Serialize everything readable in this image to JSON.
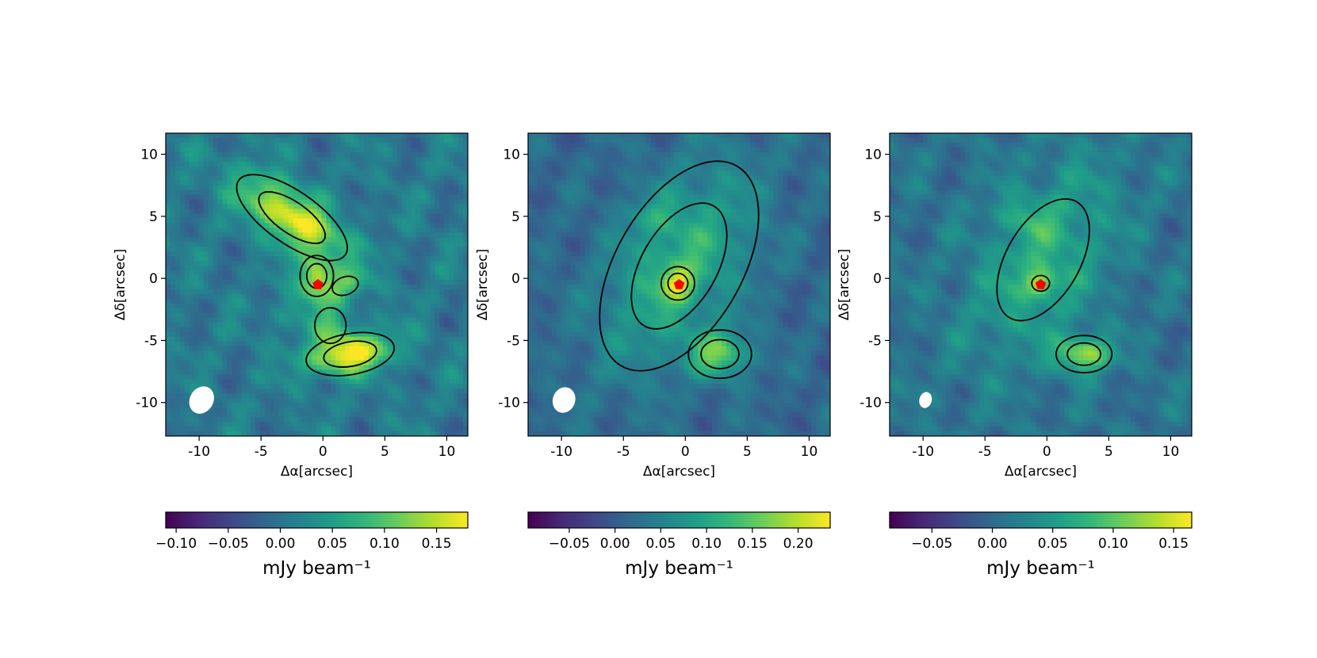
{
  "figure": {
    "panel_count": 3,
    "colormap": "viridis",
    "colormap_stops": [
      "#440154",
      "#482878",
      "#3e4989",
      "#31688e",
      "#26828e",
      "#1f9e89",
      "#35b779",
      "#6ece58",
      "#b5de2b",
      "#fde725"
    ],
    "contour_color": "#000000",
    "star_marker_color": "#ff0000",
    "beam_color": "#ffffff"
  },
  "chart_data": [
    {
      "type": "heatmap",
      "title": "",
      "xlabel": "Δα[arcsec]",
      "ylabel": "Δδ[arcsec]",
      "xlim": [
        -12.7,
        11.7
      ],
      "ylim": [
        -12.7,
        11.7
      ],
      "xticks": [
        -10,
        -5,
        0,
        5,
        10
      ],
      "yticks": [
        -10,
        -5,
        0,
        5,
        10
      ],
      "xtick_labels": [
        "-10",
        "-5",
        "0",
        "5",
        "10"
      ],
      "ytick_labels": [
        "-10",
        "-5",
        "0",
        "5",
        "10"
      ],
      "colorbar": {
        "label": "mJy beam⁻¹",
        "range": [
          -0.11,
          0.18
        ],
        "ticks": [
          -0.1,
          -0.05,
          0.0,
          0.05,
          0.1,
          0.15
        ],
        "tick_labels": [
          "−0.10",
          "−0.05",
          "0.00",
          "0.05",
          "0.10",
          "0.15"
        ]
      },
      "beam": {
        "x": -9.8,
        "y": -9.8,
        "major_arcsec": 2.3,
        "minor_arcsec": 1.9,
        "pa_deg": 30
      },
      "star_marker": {
        "x": -0.4,
        "y": -0.5
      },
      "sources": [
        {
          "x": -2.5,
          "y": 4.9,
          "peak": 0.17,
          "sx": 3.5,
          "sy": 1.4,
          "pa": -35
        },
        {
          "x": -0.5,
          "y": 0.2,
          "peak": 0.13,
          "sx": 0.9,
          "sy": 1.1,
          "pa": 0
        },
        {
          "x": 1.8,
          "y": -0.6,
          "peak": 0.08,
          "sx": 1.2,
          "sy": 0.8,
          "pa": 20
        },
        {
          "x": 2.2,
          "y": -6.1,
          "peak": 0.17,
          "sx": 2.4,
          "sy": 1.1,
          "pa": 10
        },
        {
          "x": 0.6,
          "y": -3.8,
          "peak": 0.06,
          "sx": 1.4,
          "sy": 1.6,
          "pa": 0
        },
        {
          "x": -2.0,
          "y": -2.0,
          "peak": 0.04,
          "sx": 1.0,
          "sy": 2.0,
          "pa": -40
        }
      ]
    },
    {
      "type": "heatmap",
      "title": "",
      "xlabel": "Δα[arcsec]",
      "ylabel": "Δδ[arcsec]",
      "xlim": [
        -12.7,
        11.7
      ],
      "ylim": [
        -12.7,
        11.7
      ],
      "xticks": [
        -10,
        -5,
        0,
        5,
        10
      ],
      "yticks": [
        -10,
        -5,
        0,
        5,
        10
      ],
      "xtick_labels": [
        "-10",
        "-5",
        "0",
        "5",
        "10"
      ],
      "ytick_labels": [
        "-10",
        "-5",
        "0",
        "5",
        "10"
      ],
      "colorbar": {
        "label": "mJy beam⁻¹",
        "range": [
          -0.095,
          0.235
        ],
        "ticks": [
          -0.05,
          0.0,
          0.05,
          0.1,
          0.15,
          0.2
        ],
        "tick_labels": [
          "−0.05",
          "0.00",
          "0.05",
          "0.10",
          "0.15",
          "0.20"
        ]
      },
      "beam": {
        "x": -9.8,
        "y": -9.8,
        "major_arcsec": 2.1,
        "minor_arcsec": 1.8,
        "pa_deg": 20
      },
      "star_marker": {
        "x": -0.5,
        "y": -0.5
      },
      "sources": [
        {
          "x": -0.5,
          "y": 1.0,
          "peak": 0.1,
          "sx": 3.4,
          "sy": 6.2,
          "pa": -30
        },
        {
          "x": -0.6,
          "y": -0.4,
          "peak": 0.12,
          "sx": 0.9,
          "sy": 0.9,
          "pa": 0
        },
        {
          "x": 2.8,
          "y": -6.1,
          "peak": 0.13,
          "sx": 1.7,
          "sy": 1.3,
          "pa": 0
        },
        {
          "x": -2.8,
          "y": 5.0,
          "peak": 0.04,
          "sx": 1.4,
          "sy": 1.0,
          "pa": 0
        }
      ]
    },
    {
      "type": "heatmap",
      "title": "",
      "xlabel": "Δα[arcsec]",
      "ylabel": "Δδ[arcsec]",
      "xlim": [
        -12.7,
        11.7
      ],
      "ylim": [
        -12.7,
        11.7
      ],
      "xticks": [
        -10,
        -5,
        0,
        5,
        10
      ],
      "yticks": [
        -10,
        -5,
        0,
        5,
        10
      ],
      "xtick_labels": [
        "-10",
        "-5",
        "0",
        "5",
        "10"
      ],
      "ytick_labels": [
        "-10",
        "-5",
        "0",
        "5",
        "10"
      ],
      "colorbar": {
        "label": "mJy beam⁻¹",
        "range": [
          -0.085,
          0.165
        ],
        "ticks": [
          -0.05,
          0.0,
          0.05,
          0.1,
          0.15
        ],
        "tick_labels": [
          "−0.05",
          "0.00",
          "0.05",
          "0.10",
          "0.15"
        ]
      },
      "beam": {
        "x": -9.8,
        "y": -9.8,
        "major_arcsec": 1.3,
        "minor_arcsec": 1.0,
        "pa_deg": 15
      },
      "star_marker": {
        "x": -0.5,
        "y": -0.5
      },
      "sources": [
        {
          "x": -0.3,
          "y": 1.5,
          "peak": 0.06,
          "sx": 3.3,
          "sy": 6.0,
          "pa": -30
        },
        {
          "x": -0.5,
          "y": -0.4,
          "peak": 0.09,
          "sx": 0.8,
          "sy": 0.7,
          "pa": 0
        },
        {
          "x": 3.0,
          "y": -6.1,
          "peak": 0.12,
          "sx": 1.5,
          "sy": 1.0,
          "pa": 0
        },
        {
          "x": -2.0,
          "y": 5.0,
          "peak": 0.03,
          "sx": 1.6,
          "sy": 0.9,
          "pa": -20
        }
      ]
    }
  ]
}
